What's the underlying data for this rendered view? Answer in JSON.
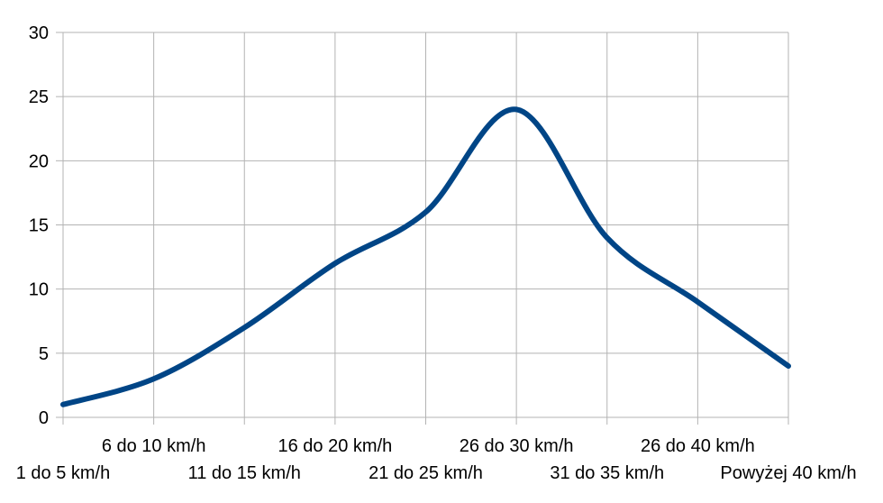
{
  "chart_data": {
    "type": "line",
    "categories": [
      "1 do 5 km/h",
      "6 do 10 km/h",
      "11 do 15 km/h",
      "16 do 20 km/h",
      "21 do 25 km/h",
      "26 do 30 km/h",
      "31 do 35 km/h",
      "26 do 40 km/h",
      "Powyżej 40 km/h"
    ],
    "series": [
      {
        "values": [
          1,
          3,
          7,
          12,
          16,
          24,
          14,
          9,
          4
        ],
        "color": "#004586"
      }
    ],
    "y_ticks": [
      "0",
      "5",
      "10",
      "15",
      "20",
      "25",
      "30"
    ],
    "ylim": [
      0,
      30
    ],
    "smooth": true,
    "grid": true,
    "grid_color": "#b3b3b3",
    "legend": "none"
  }
}
